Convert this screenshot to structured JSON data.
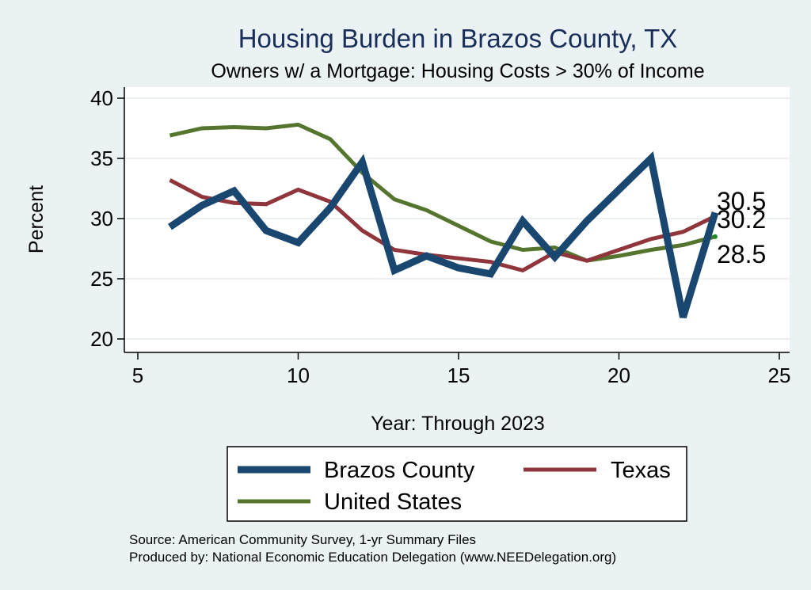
{
  "chart_data": {
    "type": "line",
    "title": "Housing Burden in Brazos County, TX",
    "subtitle": "Owners w/ a Mortgage: Housing Costs > 30% of Income",
    "xlabel": "Year: Through 2023",
    "ylabel": "Percent",
    "xlim": [
      5,
      25
    ],
    "ylim": [
      20,
      40
    ],
    "xticks": [
      5,
      10,
      15,
      20,
      25
    ],
    "yticks": [
      20,
      25,
      30,
      35,
      40
    ],
    "legend_position": "bottom",
    "series": [
      {
        "name": "Brazos County",
        "color": "#1a476f",
        "x": [
          6,
          7,
          8,
          9,
          10,
          11,
          12,
          13,
          14,
          15,
          16,
          17,
          18,
          19,
          20,
          21,
          22,
          23
        ],
        "values": [
          29.3,
          31.1,
          32.3,
          29.0,
          28.0,
          30.9,
          34.7,
          25.7,
          26.9,
          25.9,
          25.4,
          29.8,
          26.8,
          29.8,
          32.4,
          35.0,
          21.8,
          30.5
        ],
        "end_label": "30.5"
      },
      {
        "name": "Texas",
        "color": "#90353b",
        "x": [
          6,
          7,
          8,
          9,
          10,
          11,
          12,
          13,
          14,
          15,
          16,
          17,
          18,
          19,
          20,
          21,
          22,
          23
        ],
        "values": [
          33.2,
          31.8,
          31.3,
          31.2,
          32.4,
          31.4,
          29.0,
          27.4,
          27.0,
          26.7,
          26.4,
          25.7,
          27.2,
          26.5,
          27.4,
          28.3,
          28.9,
          30.2
        ],
        "end_label": "30.2"
      },
      {
        "name": "United States",
        "color": "#55752f",
        "x": [
          6,
          7,
          8,
          9,
          10,
          11,
          12,
          13,
          14,
          15,
          16,
          17,
          18,
          19,
          20,
          21,
          22,
          23
        ],
        "values": [
          36.9,
          37.5,
          37.6,
          37.5,
          37.8,
          36.6,
          33.8,
          31.6,
          30.7,
          29.4,
          28.1,
          27.4,
          27.6,
          26.5,
          26.9,
          27.4,
          27.8,
          28.5
        ],
        "end_label": "28.5"
      }
    ]
  },
  "source_lines": [
    "Source: American Community Survey, 1-yr Summary Files",
    "Produced by: National Economic Education Delegation (www.NEEDelegation.org)"
  ]
}
